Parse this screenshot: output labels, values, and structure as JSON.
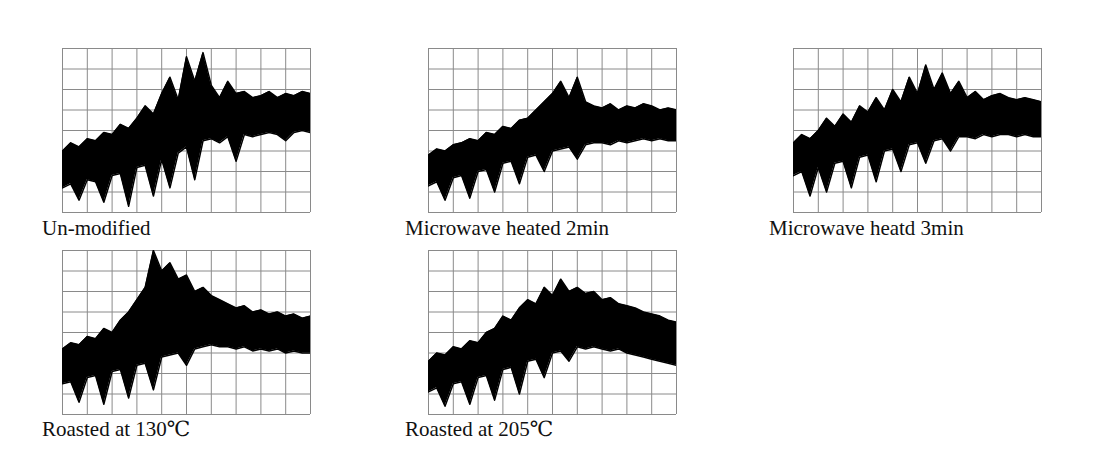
{
  "chart_data": [
    {
      "type": "area",
      "title": "Un-modified",
      "color": "#000000",
      "grid": true,
      "tick_labels": false,
      "xlim": [
        0,
        30
      ],
      "ylim": [
        0,
        8
      ],
      "xticks": [
        0,
        3,
        6,
        9,
        12,
        15,
        18,
        21,
        24,
        27,
        30
      ],
      "yticks": [
        0,
        1,
        2,
        3,
        4,
        5,
        6,
        7,
        8
      ],
      "x": [
        0,
        1,
        2,
        3,
        4,
        5,
        6,
        7,
        8,
        9,
        10,
        11,
        12,
        13,
        14,
        15,
        16,
        17,
        18,
        19,
        20,
        21,
        22,
        23,
        24,
        25,
        26,
        27,
        28,
        29,
        30
      ],
      "upper": [
        3.0,
        3.4,
        3.2,
        3.6,
        3.5,
        3.9,
        3.8,
        4.3,
        4.1,
        4.6,
        5.2,
        4.8,
        5.8,
        6.6,
        5.5,
        7.6,
        6.4,
        7.8,
        6.2,
        5.6,
        6.4,
        5.8,
        5.9,
        5.6,
        5.7,
        5.9,
        5.6,
        5.8,
        5.7,
        5.9,
        5.8
      ],
      "lower": [
        1.2,
        1.4,
        0.6,
        1.6,
        1.5,
        0.5,
        1.8,
        1.9,
        0.3,
        2.2,
        2.3,
        0.8,
        2.6,
        1.2,
        2.9,
        3.2,
        1.6,
        3.5,
        3.6,
        3.4,
        3.7,
        2.5,
        3.8,
        3.7,
        3.8,
        3.9,
        3.8,
        3.5,
        3.9,
        4.0,
        3.9
      ]
    },
    {
      "type": "area",
      "title": "Microwave heated 2min",
      "color": "#000000",
      "grid": true,
      "tick_labels": false,
      "xlim": [
        0,
        30
      ],
      "ylim": [
        0,
        8
      ],
      "xticks": [
        0,
        3,
        6,
        9,
        12,
        15,
        18,
        21,
        24,
        27,
        30
      ],
      "yticks": [
        0,
        1,
        2,
        3,
        4,
        5,
        6,
        7,
        8
      ],
      "x": [
        0,
        1,
        2,
        3,
        4,
        5,
        6,
        7,
        8,
        9,
        10,
        11,
        12,
        13,
        14,
        15,
        16,
        17,
        18,
        19,
        20,
        21,
        22,
        23,
        24,
        25,
        26,
        27,
        28,
        29,
        30
      ],
      "upper": [
        2.8,
        3.1,
        3.0,
        3.3,
        3.4,
        3.6,
        3.5,
        3.9,
        3.8,
        4.2,
        4.1,
        4.5,
        4.6,
        5.0,
        5.4,
        5.8,
        6.4,
        5.6,
        6.6,
        5.4,
        5.2,
        5.1,
        5.3,
        5.0,
        5.2,
        5.1,
        5.3,
        5.2,
        5.0,
        5.1,
        5.0
      ],
      "lower": [
        1.3,
        1.5,
        0.6,
        1.7,
        1.8,
        0.7,
        2.0,
        2.1,
        1.0,
        2.4,
        2.5,
        1.4,
        2.7,
        2.8,
        2.0,
        3.0,
        3.1,
        3.2,
        2.6,
        3.3,
        3.4,
        3.4,
        3.3,
        3.5,
        3.4,
        3.5,
        3.6,
        3.5,
        3.6,
        3.5,
        3.5
      ]
    },
    {
      "type": "area",
      "title": "Microwave heatd 3min",
      "color": "#000000",
      "grid": true,
      "tick_labels": false,
      "xlim": [
        0,
        30
      ],
      "ylim": [
        0,
        8
      ],
      "xticks": [
        0,
        3,
        6,
        9,
        12,
        15,
        18,
        21,
        24,
        27,
        30
      ],
      "yticks": [
        0,
        1,
        2,
        3,
        4,
        5,
        6,
        7,
        8
      ],
      "x": [
        0,
        1,
        2,
        3,
        4,
        5,
        6,
        7,
        8,
        9,
        10,
        11,
        12,
        13,
        14,
        15,
        16,
        17,
        18,
        19,
        20,
        21,
        22,
        23,
        24,
        25,
        26,
        27,
        28,
        29,
        30
      ],
      "upper": [
        3.4,
        3.8,
        3.6,
        4.0,
        4.6,
        4.2,
        4.8,
        4.4,
        5.2,
        4.9,
        5.6,
        5.0,
        6.0,
        5.4,
        6.6,
        5.8,
        7.2,
        6.0,
        6.8,
        5.8,
        6.4,
        5.6,
        5.9,
        5.5,
        5.7,
        5.8,
        5.6,
        5.5,
        5.6,
        5.5,
        5.4
      ],
      "lower": [
        1.8,
        2.0,
        0.8,
        2.2,
        1.0,
        2.4,
        2.5,
        1.2,
        2.7,
        2.8,
        1.5,
        3.0,
        3.1,
        2.0,
        3.3,
        3.4,
        2.4,
        3.5,
        3.6,
        3.0,
        3.7,
        3.7,
        3.6,
        3.8,
        3.7,
        3.8,
        3.8,
        3.7,
        3.8,
        3.7,
        3.7
      ]
    },
    {
      "type": "area",
      "title": "Roasted at 130℃",
      "color": "#000000",
      "grid": true,
      "tick_labels": false,
      "xlim": [
        0,
        30
      ],
      "ylim": [
        0,
        8
      ],
      "xticks": [
        0,
        3,
        6,
        9,
        12,
        15,
        18,
        21,
        24,
        27,
        30
      ],
      "yticks": [
        0,
        1,
        2,
        3,
        4,
        5,
        6,
        7,
        8
      ],
      "x": [
        0,
        1,
        2,
        3,
        4,
        5,
        6,
        7,
        8,
        9,
        10,
        11,
        12,
        13,
        14,
        15,
        16,
        17,
        18,
        19,
        20,
        21,
        22,
        23,
        24,
        25,
        26,
        27,
        28,
        29,
        30
      ],
      "upper": [
        3.2,
        3.5,
        3.4,
        3.8,
        3.7,
        4.2,
        4.0,
        4.6,
        5.0,
        5.6,
        6.2,
        8.0,
        7.0,
        7.4,
        6.6,
        6.8,
        6.0,
        6.2,
        5.8,
        5.6,
        5.4,
        5.2,
        5.3,
        5.0,
        5.1,
        4.9,
        5.0,
        4.8,
        4.9,
        4.7,
        4.8
      ],
      "lower": [
        1.5,
        1.6,
        0.6,
        1.8,
        1.9,
        0.5,
        2.1,
        2.2,
        0.8,
        2.4,
        2.5,
        1.2,
        2.8,
        2.9,
        3.0,
        2.4,
        3.2,
        3.3,
        3.4,
        3.3,
        3.3,
        3.2,
        3.3,
        3.1,
        3.2,
        3.1,
        3.2,
        3.0,
        3.1,
        3.0,
        3.0
      ]
    },
    {
      "type": "area",
      "title": "Roasted at 205℃",
      "color": "#000000",
      "grid": true,
      "tick_labels": false,
      "xlim": [
        0,
        30
      ],
      "ylim": [
        0,
        8
      ],
      "xticks": [
        0,
        3,
        6,
        9,
        12,
        15,
        18,
        21,
        24,
        27,
        30
      ],
      "yticks": [
        0,
        1,
        2,
        3,
        4,
        5,
        6,
        7,
        8
      ],
      "x": [
        0,
        1,
        2,
        3,
        4,
        5,
        6,
        7,
        8,
        9,
        10,
        11,
        12,
        13,
        14,
        15,
        16,
        17,
        18,
        19,
        20,
        21,
        22,
        23,
        24,
        25,
        26,
        27,
        28,
        29,
        30
      ],
      "upper": [
        2.6,
        3.0,
        2.9,
        3.3,
        3.2,
        3.6,
        3.5,
        4.0,
        4.2,
        4.8,
        4.6,
        5.2,
        5.6,
        5.4,
        6.2,
        5.8,
        6.6,
        6.0,
        6.2,
        5.9,
        6.0,
        5.6,
        5.7,
        5.4,
        5.3,
        5.2,
        5.0,
        4.9,
        4.8,
        4.6,
        4.5
      ],
      "lower": [
        1.1,
        1.3,
        0.4,
        1.5,
        1.6,
        0.5,
        1.8,
        1.9,
        0.7,
        2.2,
        2.3,
        1.0,
        2.6,
        2.7,
        1.8,
        3.0,
        3.1,
        2.6,
        3.3,
        3.2,
        3.3,
        3.2,
        3.1,
        3.2,
        3.0,
        2.9,
        2.8,
        2.7,
        2.6,
        2.5,
        2.4
      ]
    }
  ]
}
